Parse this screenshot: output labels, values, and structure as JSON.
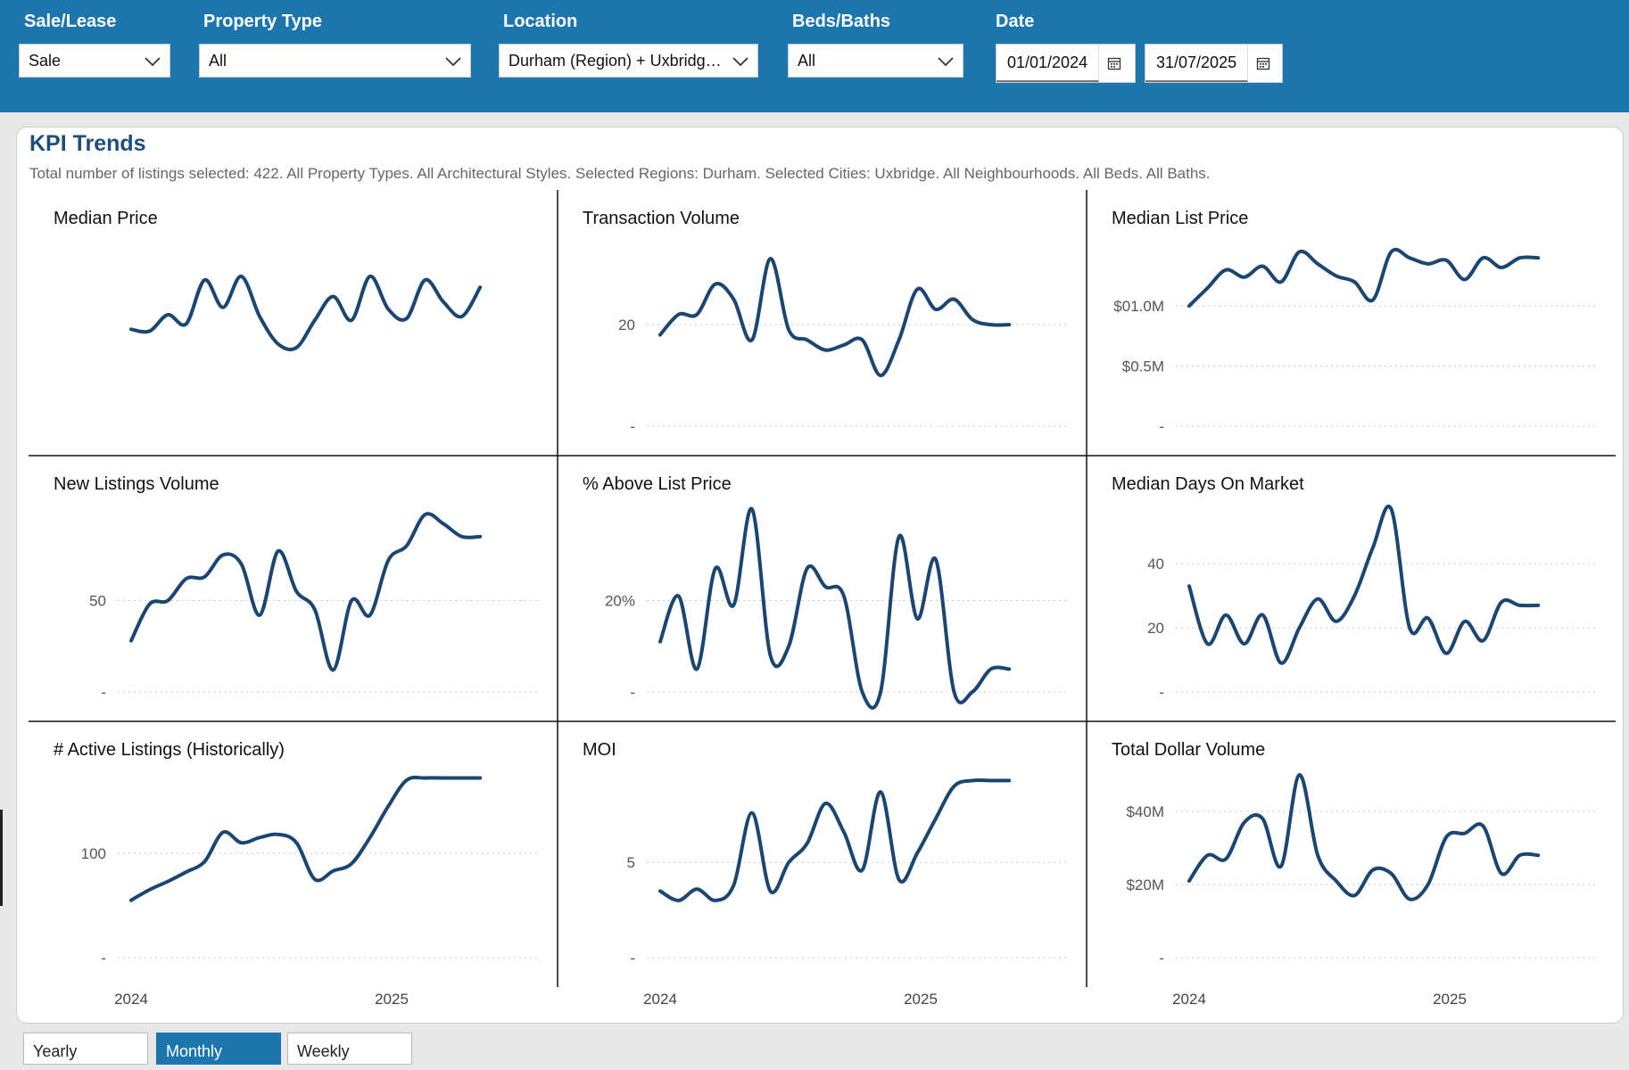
{
  "filters": {
    "sale_lease": {
      "label": "Sale/Lease",
      "value": "Sale"
    },
    "property_type": {
      "label": "Property Type",
      "value": "All"
    },
    "location": {
      "label": "Location",
      "value": "Durham (Region) + Uxbridg…"
    },
    "beds_baths": {
      "label": "Beds/Baths",
      "value": "All"
    },
    "date": {
      "label": "Date",
      "start": "01/01/2024",
      "end": "31/07/2025"
    }
  },
  "panel": {
    "title": "KPI Trends",
    "subtitle": "Total number of listings selected: 422. All Property Types. All Architectural Styles. Selected Regions: Durham. Selected Cities: Uxbridge. All Neighbourhoods. All Beds. All Baths."
  },
  "granularity": {
    "yearly": "Yearly",
    "monthly": "Monthly",
    "weekly": "Weekly",
    "selected": "Monthly"
  },
  "colors": {
    "accent": "#1c76ad",
    "line": "#1b4672",
    "title": "#1e4e79"
  },
  "chart_data": [
    {
      "type": "line",
      "title": "Median Price",
      "x_ticks": [
        "2024",
        "2025"
      ],
      "y_ticks": [],
      "ylim": [
        0,
        1
      ],
      "values": [
        0.53,
        0.52,
        0.61,
        0.56,
        0.8,
        0.65,
        0.82,
        0.6,
        0.45,
        0.43,
        0.58,
        0.71,
        0.58,
        0.82,
        0.64,
        0.59,
        0.8,
        0.68,
        0.6,
        0.76
      ]
    },
    {
      "type": "line",
      "title": "Transaction Volume",
      "x_ticks": [
        "2024",
        "2025"
      ],
      "y_ticks": [
        {
          "v": 0,
          "label": "-"
        },
        {
          "v": 20,
          "label": "20"
        }
      ],
      "ylim": [
        0,
        36
      ],
      "values": [
        18,
        22,
        22,
        28,
        25,
        17,
        33,
        19,
        17,
        15,
        16,
        17,
        10,
        17,
        27,
        23,
        25,
        21,
        20,
        20
      ]
    },
    {
      "type": "line",
      "title": "Median List Price",
      "x_ticks": [
        "2024",
        "2025"
      ],
      "y_ticks": [
        {
          "v": 0,
          "label": "-"
        },
        {
          "v": 0.5,
          "label": "$0.5M"
        },
        {
          "v": 1.0,
          "label": "$01.0M"
        }
      ],
      "ylim": [
        0,
        1.52
      ],
      "values": [
        1.0,
        1.15,
        1.3,
        1.24,
        1.33,
        1.2,
        1.45,
        1.35,
        1.25,
        1.2,
        1.05,
        1.45,
        1.4,
        1.35,
        1.38,
        1.22,
        1.4,
        1.32,
        1.4,
        1.4
      ]
    },
    {
      "type": "line",
      "title": "New Listings Volume",
      "x_ticks": [
        "2024",
        "2025"
      ],
      "y_ticks": [
        {
          "v": 0,
          "label": "-"
        },
        {
          "v": 50,
          "label": "50"
        }
      ],
      "ylim": [
        0,
        100
      ],
      "values": [
        28,
        48,
        50,
        62,
        63,
        75,
        70,
        42,
        77,
        55,
        45,
        12,
        50,
        42,
        72,
        80,
        97,
        92,
        85,
        85
      ]
    },
    {
      "type": "line",
      "title": "% Above List Price",
      "x_ticks": [
        "2024",
        "2025"
      ],
      "y_ticks": [
        {
          "v": 0,
          "label": "-"
        },
        {
          "v": 20,
          "label": "20%"
        }
      ],
      "ylim": [
        0,
        40
      ],
      "values": [
        11,
        21,
        5,
        27,
        19,
        40,
        8,
        10,
        27,
        23,
        21,
        0,
        0,
        34,
        16,
        29,
        0,
        0,
        5,
        5
      ]
    },
    {
      "type": "line",
      "title": "Median Days On Market",
      "x_ticks": [
        "2024",
        "2025"
      ],
      "y_ticks": [
        {
          "v": 0,
          "label": "-"
        },
        {
          "v": 20,
          "label": "20"
        },
        {
          "v": 40,
          "label": "40"
        }
      ],
      "ylim": [
        0,
        57
      ],
      "values": [
        33,
        15,
        24,
        15,
        24,
        9,
        20,
        29,
        22,
        30,
        45,
        57,
        20,
        23,
        12,
        22,
        16,
        28,
        27,
        27
      ]
    },
    {
      "type": "line",
      "title": "# Active Listings (Historically)",
      "x_ticks": [
        "2024",
        "2025"
      ],
      "y_ticks": [
        {
          "v": 0,
          "label": "-"
        },
        {
          "v": 100,
          "label": "100"
        }
      ],
      "ylim": [
        0,
        175
      ],
      "values": [
        55,
        65,
        73,
        82,
        92,
        120,
        110,
        115,
        118,
        110,
        75,
        83,
        90,
        115,
        145,
        170,
        172,
        172,
        172,
        172
      ]
    },
    {
      "type": "line",
      "title": "MOI",
      "x_ticks": [
        "2024",
        "2025"
      ],
      "y_ticks": [
        {
          "v": 0,
          "label": "-"
        },
        {
          "v": 5,
          "label": "5"
        }
      ],
      "ylim": [
        0,
        9.6
      ],
      "values": [
        3.5,
        3,
        3.6,
        3,
        3.8,
        7.6,
        3.5,
        5,
        6,
        8.1,
        6.6,
        4.6,
        8.7,
        4.1,
        5.5,
        7.3,
        9,
        9.3,
        9.3,
        9.3
      ]
    },
    {
      "type": "line",
      "title": "Total Dollar Volume",
      "x_ticks": [
        "2024",
        "2025"
      ],
      "y_ticks": [
        {
          "v": 0,
          "label": "-"
        },
        {
          "v": 20,
          "label": "$20M"
        },
        {
          "v": 40,
          "label": "$40M"
        }
      ],
      "ylim": [
        0,
        50
      ],
      "values": [
        21,
        28,
        27,
        37,
        38,
        25,
        50,
        28,
        21,
        17,
        24,
        23,
        16,
        20,
        33,
        34,
        36,
        23,
        28,
        28
      ]
    }
  ]
}
